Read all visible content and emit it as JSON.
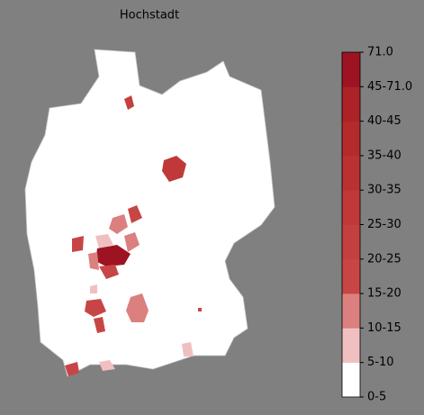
{
  "title": "Hochstadt",
  "legend": {
    "labels": [
      "0-5",
      "5-10",
      "10-15",
      "15-20",
      "20-25",
      "25-30",
      "30-35",
      "35-40",
      "40-45",
      "45-71.0",
      "71.0"
    ],
    "colors": [
      "#ffffff",
      "#f0c0c0",
      "#dc7f7f",
      "#c84545",
      "#c43f3f",
      "#c03838",
      "#bb3131",
      "#b52a2a",
      "#ad2227",
      "#9e1322"
    ]
  }
}
